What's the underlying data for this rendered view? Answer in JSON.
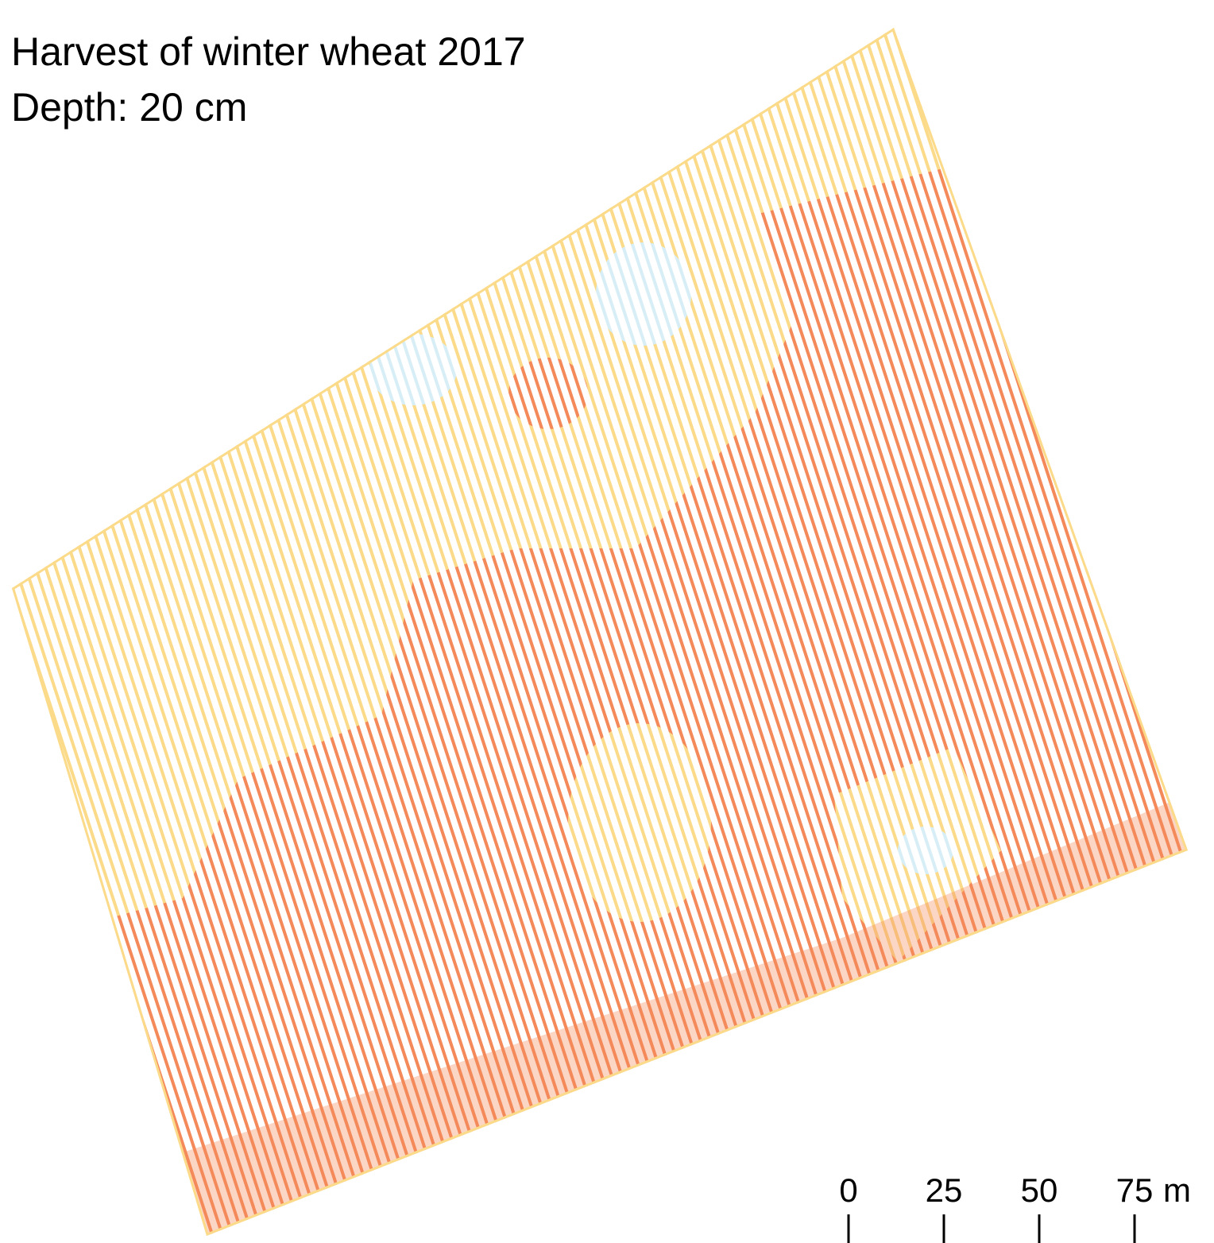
{
  "title": "Harvest of winter wheat 2017",
  "subtitle": "Depth: 20 cm",
  "scale_bar": {
    "ticks": [
      0,
      25,
      50,
      75
    ],
    "unit": "m"
  }
}
